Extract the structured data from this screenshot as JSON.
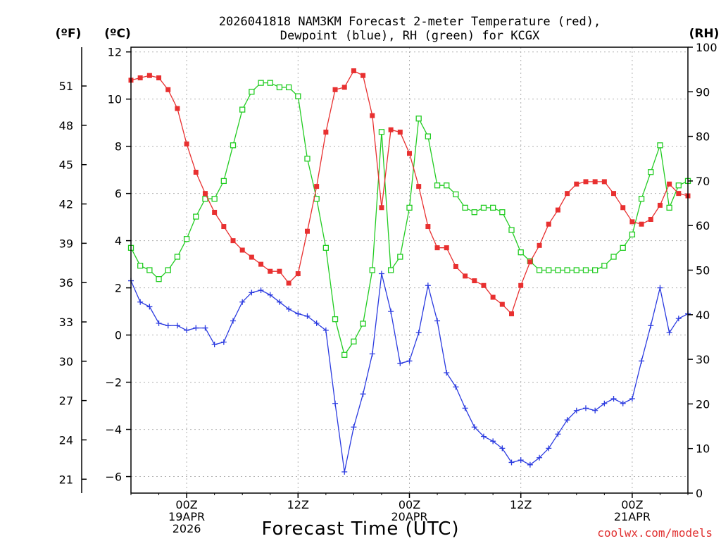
{
  "chart_data": {
    "type": "line",
    "title_line1": "2026041818 NAM3KM Forecast 2-meter Temperature (red),",
    "title_line2": "Dewpoint (blue), RH (green) for KCGX",
    "unit_f": "(ºF)",
    "unit_c": "(ºC)",
    "unit_rh": "(RH)",
    "xlabel": "Forecast Time (UTC)",
    "credit": "coolwx.com/models",
    "ylim_c": [
      -6.7,
      12.2
    ],
    "ylim_rh": [
      0,
      100
    ],
    "y_c_ticks": [
      -6,
      -4,
      -2,
      0,
      2,
      4,
      6,
      8,
      10,
      12
    ],
    "y_c_tick_labels": [
      "−6",
      "−4",
      "−2",
      "0",
      "2",
      "4",
      "6",
      "8",
      "10",
      "12"
    ],
    "y_f_ticks": [
      21,
      24,
      27,
      30,
      33,
      36,
      39,
      42,
      45,
      48,
      51
    ],
    "y_rh_ticks": [
      0,
      10,
      20,
      30,
      40,
      50,
      60,
      70,
      80,
      90,
      100
    ],
    "x_range_hours": [
      0,
      60
    ],
    "x_ticks": [
      {
        "hour": 6,
        "l1": "00Z",
        "l2": "19APR",
        "l3": "2026"
      },
      {
        "hour": 18,
        "l1": "12Z",
        "l2": "",
        "l3": ""
      },
      {
        "hour": 30,
        "l1": "00Z",
        "l2": "20APR",
        "l3": ""
      },
      {
        "hour": 42,
        "l1": "12Z",
        "l2": "",
        "l3": ""
      },
      {
        "hour": 54,
        "l1": "00Z",
        "l2": "21APR",
        "l3": ""
      }
    ],
    "series": [
      {
        "name": "2-meter Temperature",
        "unit": "C",
        "color": "#e83030",
        "marker": "filled-square",
        "x": [
          0,
          1,
          2,
          3,
          4,
          5,
          6,
          7,
          8,
          9,
          10,
          11,
          12,
          13,
          14,
          15,
          16,
          17,
          18,
          19,
          20,
          21,
          22,
          23,
          24,
          25,
          26,
          27,
          28,
          29,
          30,
          31,
          32,
          33,
          34,
          35,
          36,
          37,
          38,
          39,
          40,
          41,
          42,
          43,
          44,
          45,
          46,
          47,
          48,
          49,
          50,
          51,
          52,
          53,
          54,
          55,
          56,
          57,
          58,
          59,
          60
        ],
        "values": [
          10.8,
          10.9,
          11.0,
          10.9,
          10.4,
          9.6,
          8.1,
          6.9,
          6.0,
          5.2,
          4.6,
          4.0,
          3.6,
          3.3,
          3.0,
          2.7,
          2.7,
          2.2,
          2.6,
          4.4,
          6.3,
          8.6,
          10.4,
          10.5,
          11.2,
          11.0,
          9.3,
          5.4,
          8.7,
          8.6,
          7.7,
          6.3,
          4.6,
          3.7,
          3.7,
          2.9,
          2.5,
          2.3,
          2.1,
          1.6,
          1.3,
          0.9,
          2.1,
          3.1,
          3.8,
          4.7,
          5.3,
          6.0,
          6.4,
          6.5,
          6.5,
          6.5,
          6.0,
          5.4,
          4.8,
          4.7,
          4.9,
          5.5,
          6.4,
          6.0,
          5.9
        ]
      },
      {
        "name": "Dewpoint",
        "unit": "C",
        "color": "#2a3ae0",
        "marker": "plus",
        "x": [
          0,
          1,
          2,
          3,
          4,
          5,
          6,
          7,
          8,
          9,
          10,
          11,
          12,
          13,
          14,
          15,
          16,
          17,
          18,
          19,
          20,
          21,
          22,
          23,
          24,
          25,
          26,
          27,
          28,
          29,
          30,
          31,
          32,
          33,
          34,
          35,
          36,
          37,
          38,
          39,
          40,
          41,
          42,
          43,
          44,
          45,
          46,
          47,
          48,
          49,
          50,
          51,
          52,
          53,
          54,
          55,
          56,
          57,
          58,
          59,
          60
        ],
        "values": [
          2.3,
          1.4,
          1.2,
          0.5,
          0.4,
          0.4,
          0.2,
          0.3,
          0.3,
          -0.4,
          -0.3,
          0.6,
          1.4,
          1.8,
          1.9,
          1.7,
          1.4,
          1.1,
          0.9,
          0.8,
          0.5,
          0.2,
          -2.9,
          -5.8,
          -3.9,
          -2.5,
          -0.8,
          2.6,
          1.0,
          -1.2,
          -1.1,
          0.1,
          2.1,
          0.6,
          -1.6,
          -2.2,
          -3.1,
          -3.9,
          -4.3,
          -4.5,
          -4.8,
          -5.4,
          -5.3,
          -5.5,
          -5.2,
          -4.8,
          -4.2,
          -3.6,
          -3.2,
          -3.1,
          -3.2,
          -2.9,
          -2.7,
          -2.9,
          -2.7,
          -1.1,
          0.4,
          2.0,
          0.1,
          0.7,
          0.9
        ]
      },
      {
        "name": "RH",
        "unit": "%",
        "color": "#22cc22",
        "marker": "open-square",
        "x": [
          0,
          1,
          2,
          3,
          4,
          5,
          6,
          7,
          8,
          9,
          10,
          11,
          12,
          13,
          14,
          15,
          16,
          17,
          18,
          19,
          20,
          21,
          22,
          23,
          24,
          25,
          26,
          27,
          28,
          29,
          30,
          31,
          32,
          33,
          34,
          35,
          36,
          37,
          38,
          39,
          40,
          41,
          42,
          43,
          44,
          45,
          46,
          47,
          48,
          49,
          50,
          51,
          52,
          53,
          54,
          55,
          56,
          57,
          58,
          59,
          60
        ],
        "values": [
          55,
          51,
          50,
          48,
          50,
          53,
          57,
          62,
          66,
          66,
          70,
          78,
          86,
          90,
          92,
          92,
          91,
          91,
          89,
          75,
          66,
          55,
          39,
          31,
          34,
          38,
          50,
          81,
          50,
          53,
          64,
          84,
          80,
          69,
          69,
          67,
          64,
          63,
          64,
          64,
          63,
          59,
          54,
          52,
          50,
          50,
          50,
          50,
          50,
          50,
          50,
          51,
          53,
          55,
          58,
          66,
          72,
          78,
          64,
          69,
          70
        ]
      }
    ]
  }
}
